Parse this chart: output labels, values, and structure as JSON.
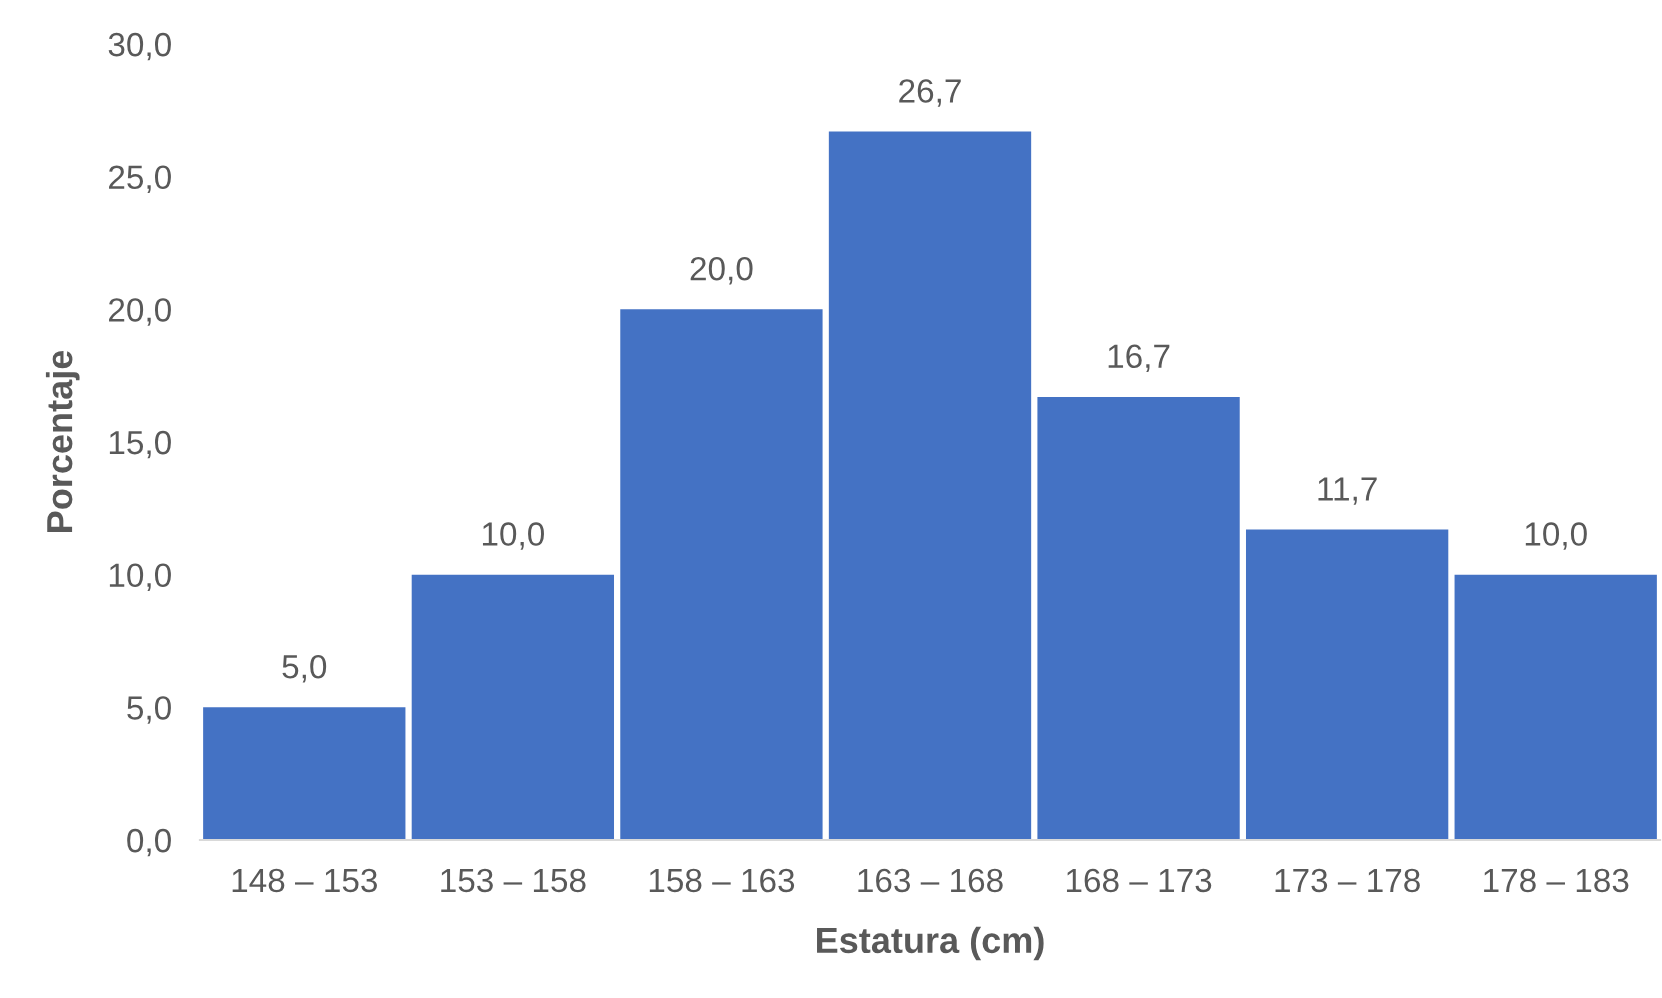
{
  "chart_data": {
    "type": "bar",
    "xlabel": "Estatura (cm)",
    "ylabel": "Porcentaje",
    "categories": [
      "148 – 153",
      "153 – 158",
      "158 – 163",
      "163 – 168",
      "168 – 173",
      "173 – 178",
      "178 – 183"
    ],
    "values": [
      5.0,
      10.0,
      20.0,
      26.7,
      16.7,
      11.7,
      10.0
    ],
    "value_labels": [
      "5,0",
      "10,0",
      "20,0",
      "26,7",
      "16,7",
      "11,7",
      "10,0"
    ],
    "color": "#4472c4",
    "ylim": [
      0,
      30
    ],
    "yticks": [
      {
        "value": 0,
        "label": "0,0"
      },
      {
        "value": 5,
        "label": "5,0"
      },
      {
        "value": 10,
        "label": "10,0"
      },
      {
        "value": 15,
        "label": "15,0"
      },
      {
        "value": 20,
        "label": "20,0"
      },
      {
        "value": 25,
        "label": "25,0"
      },
      {
        "value": 30,
        "label": "30,0"
      }
    ]
  }
}
